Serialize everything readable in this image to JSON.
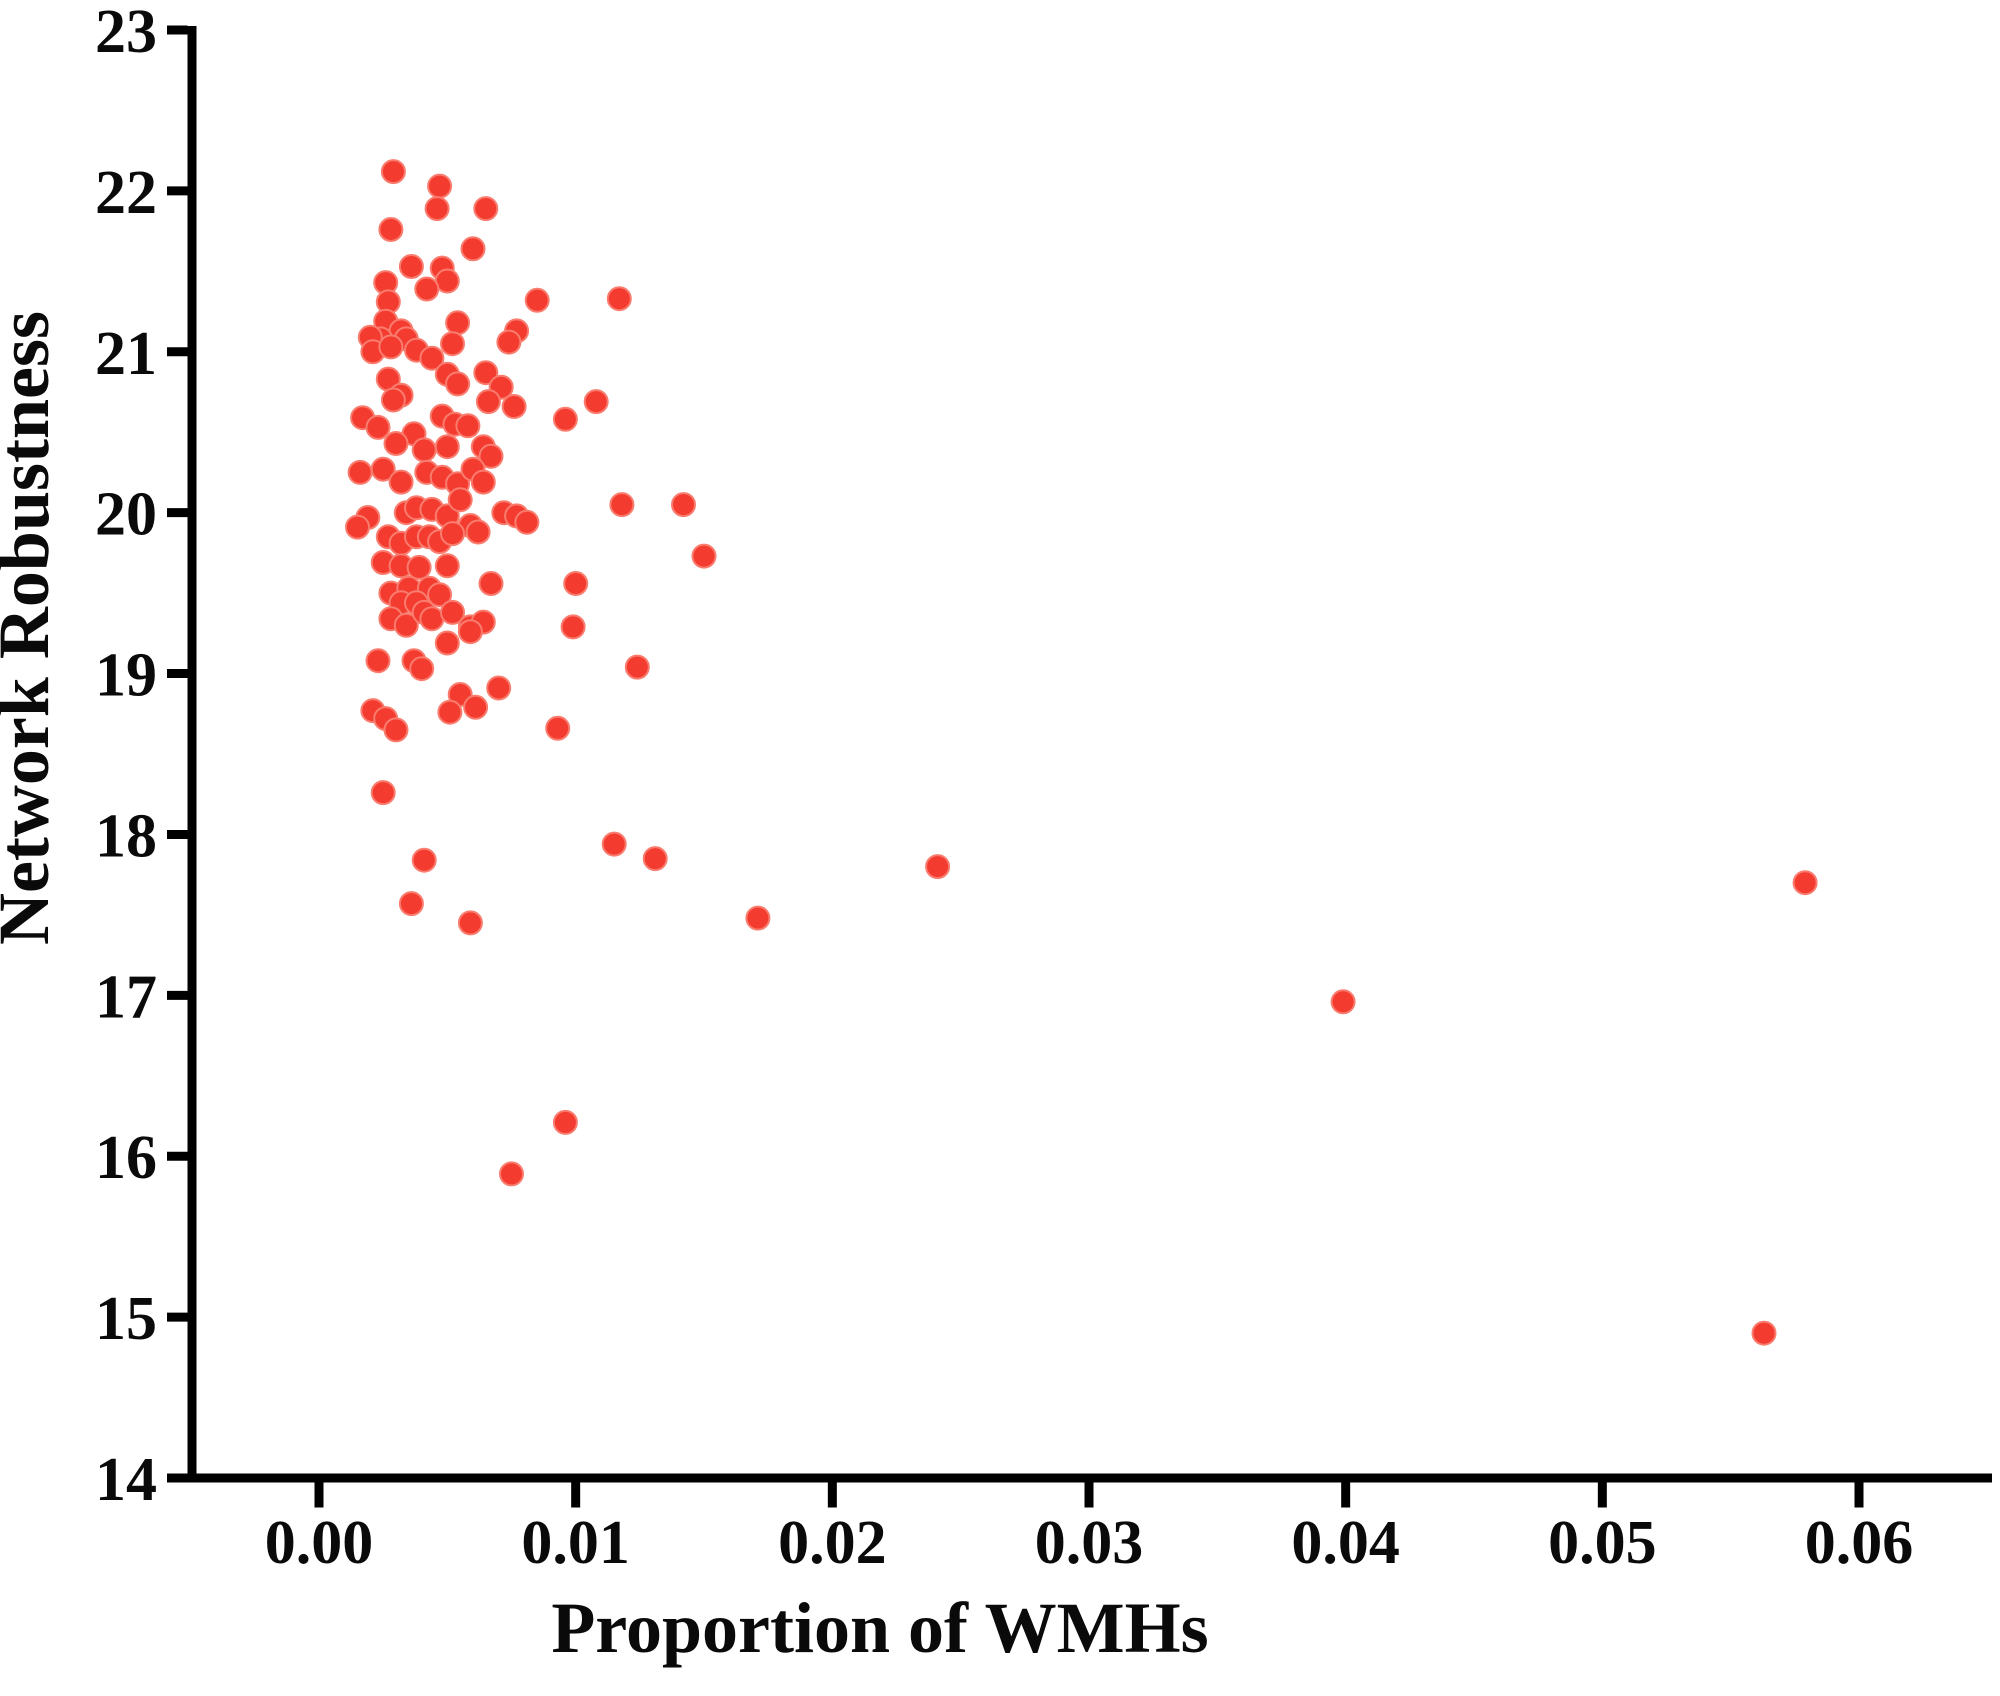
{
  "figure": {
    "background": "#ffffff"
  },
  "chart_data": {
    "type": "scatter",
    "title": "",
    "xlabel": "Proportion of WMHs",
    "ylabel": "Network Robustness",
    "legend": null,
    "grid": false,
    "xlim": [
      -0.005,
      0.065
    ],
    "ylim": [
      14,
      23
    ],
    "x_ticks": [
      0,
      0.01,
      0.02,
      0.03,
      0.04,
      0.05,
      0.06
    ],
    "x_tick_labels": [
      "0.00",
      "0.01",
      "0.02",
      "0.03",
      "0.04",
      "0.05",
      "0.06"
    ],
    "y_ticks": [
      14,
      15,
      16,
      17,
      18,
      19,
      20,
      21,
      22,
      23
    ],
    "y_tick_labels": [
      "14",
      "15",
      "16",
      "17",
      "18",
      "19",
      "20",
      "21",
      "22",
      "23"
    ],
    "marker_color": "#f43b30",
    "marker_edge_color": "#f97c6e",
    "marker_radius": 11.5,
    "axis_color": "#000000",
    "points": [
      [
        0.0029,
        22.12
      ],
      [
        0.0047,
        22.03
      ],
      [
        0.0046,
        21.89
      ],
      [
        0.0065,
        21.89
      ],
      [
        0.0028,
        21.76
      ],
      [
        0.006,
        21.64
      ],
      [
        0.0036,
        21.53
      ],
      [
        0.0048,
        21.52
      ],
      [
        0.0026,
        21.43
      ],
      [
        0.005,
        21.44
      ],
      [
        0.0042,
        21.39
      ],
      [
        0.0117,
        21.33
      ],
      [
        0.0085,
        21.32
      ],
      [
        0.0027,
        21.31
      ],
      [
        0.0054,
        21.18
      ],
      [
        0.0077,
        21.13
      ],
      [
        0.0026,
        21.19
      ],
      [
        0.0032,
        21.13
      ],
      [
        0.0024,
        21.08
      ],
      [
        0.002,
        21.09
      ],
      [
        0.0034,
        21.08
      ],
      [
        0.0021,
        21.0
      ],
      [
        0.0028,
        21.03
      ],
      [
        0.0038,
        21.01
      ],
      [
        0.0044,
        20.96
      ],
      [
        0.0052,
        21.05
      ],
      [
        0.0074,
        21.06
      ],
      [
        0.005,
        20.86
      ],
      [
        0.0054,
        20.8
      ],
      [
        0.0027,
        20.83
      ],
      [
        0.0032,
        20.73
      ],
      [
        0.0065,
        20.87
      ],
      [
        0.0071,
        20.78
      ],
      [
        0.0066,
        20.69
      ],
      [
        0.0076,
        20.66
      ],
      [
        0.0017,
        20.59
      ],
      [
        0.0023,
        20.53
      ],
      [
        0.0029,
        20.7
      ],
      [
        0.0037,
        20.49
      ],
      [
        0.0048,
        20.6
      ],
      [
        0.0053,
        20.55
      ],
      [
        0.0058,
        20.54
      ],
      [
        0.0096,
        20.58
      ],
      [
        0.0108,
        20.69
      ],
      [
        0.003,
        20.43
      ],
      [
        0.0041,
        20.39
      ],
      [
        0.005,
        20.41
      ],
      [
        0.0064,
        20.41
      ],
      [
        0.0067,
        20.35
      ],
      [
        0.0016,
        20.25
      ],
      [
        0.0025,
        20.27
      ],
      [
        0.0032,
        20.19
      ],
      [
        0.0042,
        20.25
      ],
      [
        0.0048,
        20.22
      ],
      [
        0.0054,
        20.18
      ],
      [
        0.006,
        20.27
      ],
      [
        0.0064,
        20.19
      ],
      [
        0.0019,
        19.97
      ],
      [
        0.0015,
        19.91
      ],
      [
        0.0034,
        20.0
      ],
      [
        0.0038,
        20.03
      ],
      [
        0.0044,
        20.02
      ],
      [
        0.005,
        19.98
      ],
      [
        0.0055,
        20.08
      ],
      [
        0.0059,
        19.92
      ],
      [
        0.0072,
        20.0
      ],
      [
        0.0077,
        19.98
      ],
      [
        0.0081,
        19.94
      ],
      [
        0.0118,
        20.05
      ],
      [
        0.0142,
        20.05
      ],
      [
        0.0027,
        19.85
      ],
      [
        0.0032,
        19.81
      ],
      [
        0.0038,
        19.85
      ],
      [
        0.0043,
        19.85
      ],
      [
        0.0047,
        19.82
      ],
      [
        0.0052,
        19.87
      ],
      [
        0.0062,
        19.88
      ],
      [
        0.015,
        19.73
      ],
      [
        0.0025,
        19.69
      ],
      [
        0.0032,
        19.67
      ],
      [
        0.0039,
        19.66
      ],
      [
        0.005,
        19.67
      ],
      [
        0.0067,
        19.56
      ],
      [
        0.01,
        19.56
      ],
      [
        0.0028,
        19.5
      ],
      [
        0.0035,
        19.53
      ],
      [
        0.0043,
        19.53
      ],
      [
        0.0047,
        19.49
      ],
      [
        0.0032,
        19.44
      ],
      [
        0.0038,
        19.44
      ],
      [
        0.0028,
        19.34
      ],
      [
        0.0034,
        19.3
      ],
      [
        0.0041,
        19.38
      ],
      [
        0.0044,
        19.34
      ],
      [
        0.0052,
        19.38
      ],
      [
        0.0059,
        19.29
      ],
      [
        0.0064,
        19.32
      ],
      [
        0.0099,
        19.29
      ],
      [
        0.005,
        19.19
      ],
      [
        0.0059,
        19.26
      ],
      [
        0.0023,
        19.08
      ],
      [
        0.0037,
        19.08
      ],
      [
        0.004,
        19.03
      ],
      [
        0.0124,
        19.04
      ],
      [
        0.0055,
        18.87
      ],
      [
        0.0061,
        18.79
      ],
      [
        0.007,
        18.91
      ],
      [
        0.0021,
        18.77
      ],
      [
        0.0026,
        18.72
      ],
      [
        0.003,
        18.65
      ],
      [
        0.0051,
        18.76
      ],
      [
        0.0093,
        18.66
      ],
      [
        0.0025,
        18.26
      ],
      [
        0.0041,
        17.84
      ],
      [
        0.0115,
        17.94
      ],
      [
        0.0036,
        17.57
      ],
      [
        0.0059,
        17.45
      ],
      [
        0.0131,
        17.85
      ],
      [
        0.0171,
        17.48
      ],
      [
        0.0241,
        17.8
      ],
      [
        0.0096,
        16.21
      ],
      [
        0.0075,
        15.89
      ],
      [
        0.0399,
        16.96
      ],
      [
        0.0579,
        17.7
      ],
      [
        0.0563,
        14.9
      ]
    ]
  }
}
